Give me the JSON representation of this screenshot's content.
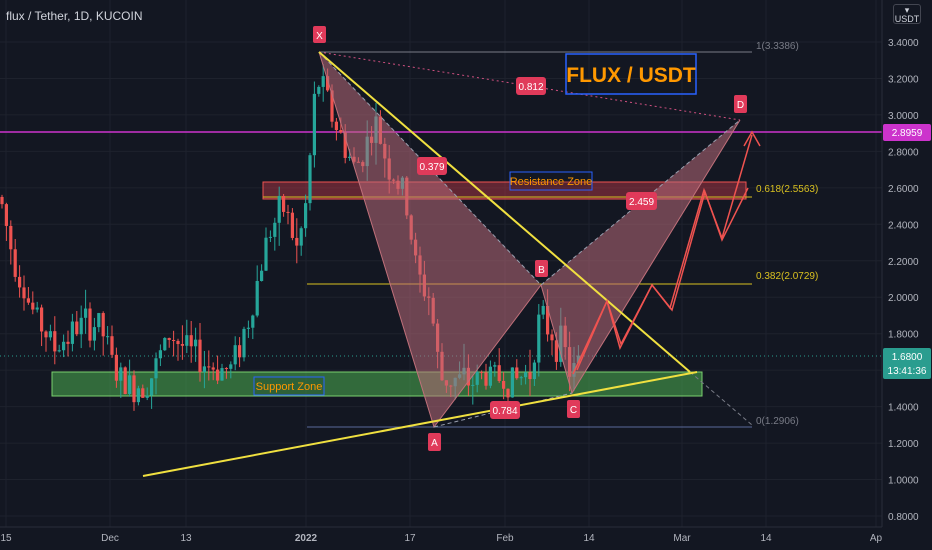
{
  "symbol_title": "flux / Tether, 1D, KUCOIN",
  "currency_button": "USDT",
  "currency_caret": "▾",
  "chart_title": "FLUX / USDT",
  "price_axis": [
    "3.4000",
    "3.2000",
    "3.0000",
    "2.8000",
    "2.6000",
    "2.4000",
    "2.2000",
    "2.0000",
    "1.8000",
    "1.6000",
    "1.4000",
    "1.2000",
    "1.0000",
    "0.8000"
  ],
  "time_axis": [
    "15",
    "Dec",
    "13",
    "2022",
    "17",
    "Feb",
    "14",
    "Mar",
    "14",
    "Ap"
  ],
  "price_tags": {
    "level": "2.8959",
    "last": "1.6800",
    "countdown": "13:41:36"
  },
  "fib_labels": {
    "f1": "1(3.3386)",
    "f0618": "0.618(2.5563)",
    "f0382": "0.382(2.0729)",
    "f0": "0(1.2906)"
  },
  "points": {
    "x": "X",
    "a": "A",
    "b": "B",
    "c": "C",
    "d": "D"
  },
  "ratios": {
    "xd": "0.812",
    "ab": "0.379",
    "bd": "2.459",
    "bc": "0.784"
  },
  "zones": {
    "resistance": "Resistance Zone",
    "support": "Support Zone"
  },
  "colors": {
    "background": "#131722",
    "bullish": "#26a69a",
    "bearish": "#ef5350",
    "level_line": "#cc33cc",
    "last_price": "#2a9d8f",
    "trendline": "#f0e040",
    "support_zone": "#4caf50",
    "resistance_zone": "#c23a4a",
    "pattern_fill": "#b86a78",
    "projection": "#ef5350"
  },
  "chart_data": {
    "type": "candlestick",
    "y_range": [
      0.8,
      3.45
    ],
    "y_ticks": [
      3.4,
      3.2,
      3.0,
      2.8,
      2.6,
      2.4,
      2.2,
      2.0,
      1.8,
      1.6,
      1.4,
      1.2,
      1.0,
      0.8
    ],
    "x_ticks": [
      "15",
      "Dec",
      "13",
      "2022",
      "17",
      "Feb",
      "14",
      "Mar",
      "14",
      "Ap"
    ],
    "horizontal_level": 2.8959,
    "last_price": 1.68,
    "fib_levels": [
      {
        "ratio": "1",
        "price": 3.3386
      },
      {
        "ratio": "0.618",
        "price": 2.5563
      },
      {
        "ratio": "0.382",
        "price": 2.0729
      },
      {
        "ratio": "0",
        "price": 1.2906
      }
    ],
    "resistance_zone": [
      2.53,
      2.63
    ],
    "support_zone": [
      1.47,
      1.61
    ],
    "pattern_points": [
      {
        "label": "X",
        "price": 3.35
      },
      {
        "label": "A",
        "price": 1.29
      },
      {
        "label": "B",
        "price": 2.07
      },
      {
        "label": "C",
        "price": 1.49
      },
      {
        "label": "D",
        "price": 2.97
      }
    ],
    "ratios": [
      0.812,
      0.379,
      2.459,
      0.784
    ]
  }
}
